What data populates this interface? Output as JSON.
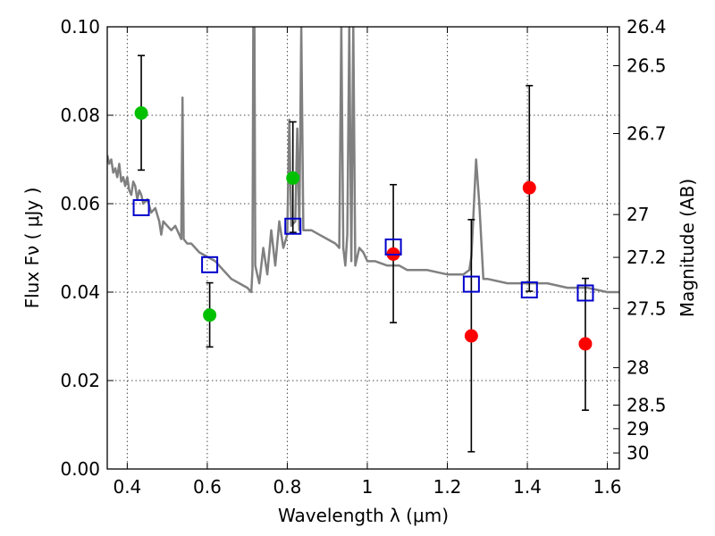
{
  "chart_data": {
    "type": "scatter",
    "title": "",
    "xlabel": "Wavelength  λ (μm)",
    "ylabel": "Flux  Fν  ( μJy )",
    "y2label": "Magnitude (AB)",
    "xlim": [
      0.35,
      1.63
    ],
    "ylim": [
      0.0,
      0.1
    ],
    "grid": true,
    "x_ticks": [
      0.4,
      0.6,
      0.8,
      1.0,
      1.2,
      1.4,
      1.6
    ],
    "x_tick_labels": [
      "0.4",
      "0.6",
      "0.8",
      "1",
      "1.2",
      "1.4",
      "1.6"
    ],
    "y_ticks": [
      0.0,
      0.02,
      0.04,
      0.06,
      0.08,
      0.1
    ],
    "y_tick_labels": [
      "0.00",
      "0.02",
      "0.04",
      "0.06",
      "0.08",
      "0.10"
    ],
    "mag_ticks": [
      {
        "mag": 26.4,
        "label": "26.4"
      },
      {
        "mag": 26.5,
        "label": "26.5"
      },
      {
        "mag": 26.7,
        "label": "26.7"
      },
      {
        "mag": 27,
        "label": "27"
      },
      {
        "mag": 27.2,
        "label": "27.2"
      },
      {
        "mag": 27.5,
        "label": "27.5"
      },
      {
        "mag": 28,
        "label": "28"
      },
      {
        "mag": 28.5,
        "label": "28.5"
      },
      {
        "mag": 29,
        "label": "29"
      },
      {
        "mag": 30,
        "label": "30"
      }
    ],
    "series": [
      {
        "kind": "line",
        "color": "#808080",
        "points": [
          [
            0.35,
            0.071
          ],
          [
            0.355,
            0.069
          ],
          [
            0.36,
            0.07
          ],
          [
            0.365,
            0.067
          ],
          [
            0.37,
            0.068
          ],
          [
            0.375,
            0.066
          ],
          [
            0.38,
            0.069
          ],
          [
            0.385,
            0.065
          ],
          [
            0.39,
            0.066
          ],
          [
            0.395,
            0.064
          ],
          [
            0.4,
            0.066
          ],
          [
            0.405,
            0.063
          ],
          [
            0.41,
            0.062
          ],
          [
            0.415,
            0.065
          ],
          [
            0.42,
            0.064
          ],
          [
            0.425,
            0.061
          ],
          [
            0.43,
            0.063
          ],
          [
            0.435,
            0.062
          ],
          [
            0.44,
            0.06
          ],
          [
            0.45,
            0.061
          ],
          [
            0.46,
            0.058
          ],
          [
            0.47,
            0.059
          ],
          [
            0.48,
            0.056
          ],
          [
            0.485,
            0.053
          ],
          [
            0.49,
            0.056
          ],
          [
            0.5,
            0.055
          ],
          [
            0.51,
            0.054
          ],
          [
            0.52,
            0.055
          ],
          [
            0.53,
            0.053
          ],
          [
            0.535,
            0.052
          ],
          [
            0.538,
            0.084
          ],
          [
            0.541,
            0.052
          ],
          [
            0.55,
            0.051
          ],
          [
            0.56,
            0.051
          ],
          [
            0.57,
            0.05
          ],
          [
            0.58,
            0.049
          ],
          [
            0.6,
            0.048
          ],
          [
            0.62,
            0.047
          ],
          [
            0.64,
            0.045
          ],
          [
            0.66,
            0.043
          ],
          [
            0.68,
            0.042
          ],
          [
            0.7,
            0.041
          ],
          [
            0.71,
            0.04
          ],
          [
            0.713,
            0.045
          ],
          [
            0.715,
            0.1
          ],
          [
            0.718,
            0.1
          ],
          [
            0.72,
            0.046
          ],
          [
            0.73,
            0.042
          ],
          [
            0.74,
            0.05
          ],
          [
            0.75,
            0.044
          ],
          [
            0.76,
            0.054
          ],
          [
            0.77,
            0.046
          ],
          [
            0.78,
            0.056
          ],
          [
            0.79,
            0.05
          ],
          [
            0.8,
            0.053
          ],
          [
            0.805,
            0.079
          ],
          [
            0.81,
            0.055
          ],
          [
            0.82,
            0.056
          ],
          [
            0.825,
            0.077
          ],
          [
            0.83,
            0.054
          ],
          [
            0.835,
            0.1
          ],
          [
            0.84,
            0.054
          ],
          [
            0.86,
            0.054
          ],
          [
            0.88,
            0.053
          ],
          [
            0.9,
            0.052
          ],
          [
            0.92,
            0.051
          ],
          [
            0.93,
            0.05
          ],
          [
            0.935,
            0.1
          ],
          [
            0.94,
            0.05
          ],
          [
            0.945,
            0.046
          ],
          [
            0.95,
            0.053
          ],
          [
            0.955,
            0.1
          ],
          [
            0.96,
            0.047
          ],
          [
            0.965,
            0.1
          ],
          [
            0.97,
            0.046
          ],
          [
            0.98,
            0.05
          ],
          [
            0.99,
            0.049
          ],
          [
            1.0,
            0.047
          ],
          [
            1.02,
            0.047
          ],
          [
            1.05,
            0.046
          ],
          [
            1.08,
            0.046
          ],
          [
            1.1,
            0.045
          ],
          [
            1.15,
            0.045
          ],
          [
            1.2,
            0.044
          ],
          [
            1.24,
            0.044
          ],
          [
            1.255,
            0.045
          ],
          [
            1.26,
            0.048
          ],
          [
            1.265,
            0.057
          ],
          [
            1.272,
            0.07
          ],
          [
            1.28,
            0.06
          ],
          [
            1.29,
            0.043
          ],
          [
            1.3,
            0.043
          ],
          [
            1.35,
            0.042
          ],
          [
            1.4,
            0.042
          ],
          [
            1.45,
            0.042
          ],
          [
            1.5,
            0.041
          ],
          [
            1.55,
            0.041
          ],
          [
            1.6,
            0.04
          ],
          [
            1.63,
            0.04
          ]
        ]
      },
      {
        "kind": "errorbar",
        "color": "#000000",
        "bars": [
          {
            "x": 0.435,
            "low": 0.0676,
            "high": 0.0935
          },
          {
            "x": 0.606,
            "low": 0.0276,
            "high": 0.0421
          },
          {
            "x": 0.814,
            "low": 0.0535,
            "high": 0.0785
          },
          {
            "x": 1.065,
            "low": 0.0331,
            "high": 0.0643
          },
          {
            "x": 1.26,
            "low": 0.0039,
            "high": 0.0564
          },
          {
            "x": 1.405,
            "low": 0.0402,
            "high": 0.0867
          },
          {
            "x": 1.545,
            "low": 0.0133,
            "high": 0.0431
          }
        ]
      },
      {
        "kind": "points",
        "marker": "circle",
        "color": "#00c000",
        "points": [
          [
            0.435,
            0.0805
          ],
          [
            0.606,
            0.0348
          ],
          [
            0.814,
            0.0658
          ]
        ]
      },
      {
        "kind": "points",
        "marker": "circle",
        "color": "#ff0000",
        "points": [
          [
            1.065,
            0.0486
          ],
          [
            1.26,
            0.0301
          ],
          [
            1.405,
            0.0636
          ],
          [
            1.545,
            0.0283
          ]
        ]
      },
      {
        "kind": "points",
        "marker": "square",
        "color": "#0000cc",
        "points": [
          [
            0.435,
            0.0591
          ],
          [
            0.606,
            0.0462
          ],
          [
            0.814,
            0.0549
          ],
          [
            1.065,
            0.0502
          ],
          [
            1.26,
            0.0418
          ],
          [
            1.405,
            0.0405
          ],
          [
            1.545,
            0.0398
          ]
        ]
      }
    ]
  }
}
